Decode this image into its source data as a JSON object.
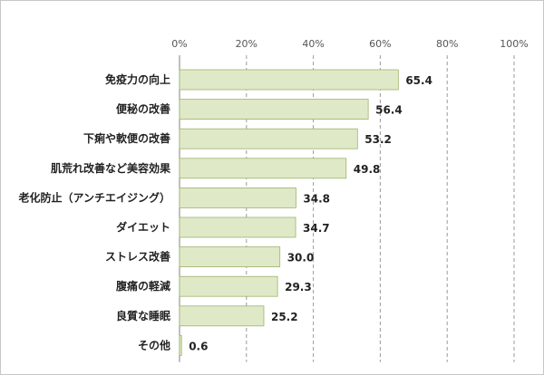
{
  "chart_data": {
    "type": "bar",
    "orientation": "horizontal",
    "categories": [
      "免疫力の向上",
      "便秘の改善",
      "下痢や軟便の改善",
      "肌荒れ改善など美容効果",
      "老化防止（アンチエイジング）",
      "ダイエット",
      "ストレス改善",
      "腹痛の軽減",
      "良質な睡眠",
      "その他"
    ],
    "values": [
      65.4,
      56.4,
      53.2,
      49.8,
      34.8,
      34.7,
      30.0,
      29.3,
      25.2,
      0.6
    ],
    "value_labels": [
      "65.4",
      "56.4",
      "53.2",
      "49.8",
      "34.8",
      "34.7",
      "30.0",
      "29.3",
      "25.2",
      "0.6"
    ],
    "xlim": [
      0,
      100
    ],
    "xticks": [
      0,
      20,
      40,
      60,
      80,
      100
    ],
    "xtick_labels": [
      "0%",
      "20%",
      "40%",
      "60%",
      "80%",
      "100%"
    ],
    "tick_position": "top",
    "grid": "vertical dashed",
    "legend": "none",
    "title": "",
    "xlabel": "",
    "ylabel": ""
  },
  "colors": {
    "bar_fill": "#dfe9c8",
    "bar_stroke": "#9db36a",
    "grid": "#9a9a9a",
    "axis": "#808080"
  }
}
